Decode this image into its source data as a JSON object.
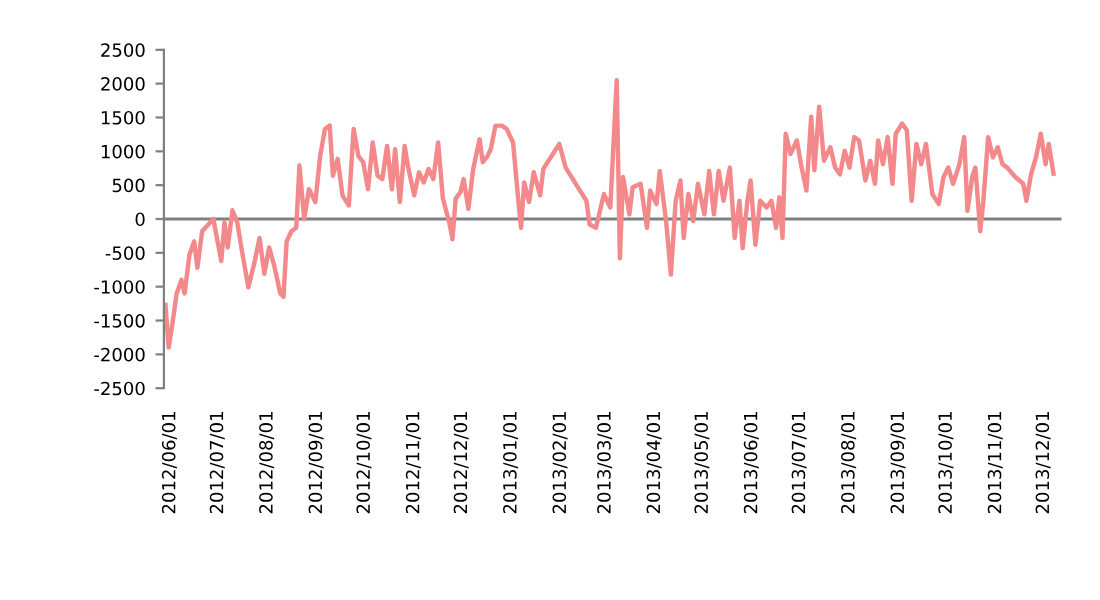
{
  "chart_data": {
    "type": "line",
    "x": [
      "2012-05-29",
      "2012-05-31",
      "2012-06-02",
      "2012-06-05",
      "2012-06-08",
      "2012-06-10",
      "2012-06-13",
      "2012-06-16",
      "2012-06-18",
      "2012-06-21",
      "2012-06-28",
      "2012-07-03",
      "2012-07-05",
      "2012-07-07",
      "2012-07-10",
      "2012-07-13",
      "2012-07-16",
      "2012-07-20",
      "2012-07-24",
      "2012-07-27",
      "2012-07-30",
      "2012-08-02",
      "2012-08-05",
      "2012-08-09",
      "2012-08-11",
      "2012-08-13",
      "2012-08-16",
      "2012-08-19",
      "2012-08-21",
      "2012-08-24",
      "2012-08-27",
      "2012-08-31",
      "2012-09-03",
      "2012-09-06",
      "2012-09-09",
      "2012-09-11",
      "2012-09-14",
      "2012-09-17",
      "2012-09-21",
      "2012-09-24",
      "2012-09-27",
      "2012-09-30",
      "2012-10-03",
      "2012-10-06",
      "2012-10-09",
      "2012-10-12",
      "2012-10-15",
      "2012-10-18",
      "2012-10-20",
      "2012-10-23",
      "2012-10-26",
      "2012-10-28",
      "2012-11-01",
      "2012-11-04",
      "2012-11-07",
      "2012-11-10",
      "2012-11-13",
      "2012-11-16",
      "2012-11-19",
      "2012-11-23",
      "2012-11-25",
      "2012-11-27",
      "2012-11-30",
      "2012-12-02",
      "2012-12-05",
      "2012-12-08",
      "2012-12-12",
      "2012-12-14",
      "2012-12-17",
      "2012-12-19",
      "2012-12-22",
      "2012-12-26",
      "2012-12-29",
      "2013-01-02",
      "2013-01-05",
      "2013-01-07",
      "2013-01-09",
      "2013-01-12",
      "2013-01-15",
      "2013-01-19",
      "2013-01-21",
      "2013-01-31",
      "2013-02-04",
      "2013-02-13",
      "2013-02-17",
      "2013-02-19",
      "2013-02-23",
      "2013-02-28",
      "2013-03-04",
      "2013-03-08",
      "2013-03-10",
      "2013-03-12",
      "2013-03-16",
      "2013-03-18",
      "2013-03-23",
      "2013-03-27",
      "2013-03-29",
      "2013-04-02",
      "2013-04-04",
      "2013-04-08",
      "2013-04-11",
      "2013-04-14",
      "2013-04-17",
      "2013-04-19",
      "2013-04-22",
      "2013-04-25",
      "2013-04-28",
      "2013-05-02",
      "2013-05-05",
      "2013-05-08",
      "2013-05-11",
      "2013-05-14",
      "2013-05-18",
      "2013-05-21",
      "2013-05-24",
      "2013-05-26",
      "2013-05-29",
      "2013-05-31",
      "2013-06-03",
      "2013-06-06",
      "2013-06-10",
      "2013-06-13",
      "2013-06-16",
      "2013-06-18",
      "2013-06-20",
      "2013-06-22",
      "2013-06-25",
      "2013-06-29",
      "2013-07-02",
      "2013-07-05",
      "2013-07-08",
      "2013-07-10",
      "2013-07-13",
      "2013-07-16",
      "2013-07-20",
      "2013-07-23",
      "2013-07-26",
      "2013-07-29",
      "2013-08-01",
      "2013-08-04",
      "2013-08-07",
      "2013-08-11",
      "2013-08-14",
      "2013-08-17",
      "2013-08-19",
      "2013-08-22",
      "2013-08-25",
      "2013-08-28",
      "2013-08-30",
      "2013-09-03",
      "2013-09-06",
      "2013-09-09",
      "2013-09-12",
      "2013-09-15",
      "2013-09-18",
      "2013-09-22",
      "2013-09-26",
      "2013-09-29",
      "2013-10-02",
      "2013-10-05",
      "2013-10-09",
      "2013-10-12",
      "2013-10-14",
      "2013-10-17",
      "2013-10-19",
      "2013-10-22",
      "2013-10-24",
      "2013-10-27",
      "2013-10-30",
      "2013-11-02",
      "2013-11-05",
      "2013-11-08",
      "2013-11-13",
      "2013-11-18",
      "2013-11-20",
      "2013-11-23",
      "2013-11-26",
      "2013-11-29",
      "2013-12-02",
      "2013-12-04",
      "2013-12-07"
    ],
    "series": [
      {
        "color": "#f4898b",
        "values": [
          -1270,
          -1900,
          -1600,
          -1100,
          -900,
          -1100,
          -530,
          -330,
          -720,
          -180,
          0,
          -620,
          -50,
          -420,
          130,
          -50,
          -480,
          -1010,
          -620,
          -280,
          -810,
          -420,
          -670,
          -1100,
          -1150,
          -330,
          -180,
          -130,
          790,
          0,
          440,
          250,
          930,
          1330,
          1380,
          640,
          890,
          350,
          200,
          1330,
          930,
          840,
          440,
          1130,
          640,
          590,
          1080,
          440,
          1030,
          250,
          1080,
          790,
          350,
          690,
          540,
          740,
          590,
          1130,
          300,
          -50,
          -300,
          300,
          400,
          590,
          150,
          740,
          1180,
          840,
          930,
          1030,
          1380,
          1380,
          1330,
          1130,
          350,
          -130,
          540,
          250,
          690,
          350,
          740,
          1110,
          760,
          420,
          270,
          -80,
          -130,
          370,
          170,
          2050,
          -580,
          620,
          70,
          470,
          520,
          -130,
          420,
          220,
          710,
          -30,
          -820,
          270,
          570,
          -280,
          370,
          -30,
          520,
          70,
          710,
          70,
          710,
          270,
          760,
          -280,
          270,
          -430,
          270,
          570,
          -380,
          270,
          170,
          270,
          -130,
          320,
          -280,
          1260,
          960,
          1160,
          760,
          420,
          1510,
          720,
          1660,
          860,
          1060,
          760,
          660,
          1010,
          760,
          1210,
          1160,
          570,
          860,
          520,
          1160,
          810,
          1210,
          520,
          1260,
          1410,
          1310,
          270,
          1110,
          810,
          1110,
          370,
          220,
          620,
          760,
          520,
          810,
          1210,
          120,
          620,
          760,
          -180,
          270,
          1210,
          910,
          1060,
          810,
          760,
          620,
          520,
          270,
          670,
          910,
          1260,
          810,
          1110,
          670
        ]
      }
    ],
    "xlim": [
      "2012-05-28",
      "2013-12-12"
    ],
    "xticks": [
      {
        "value": "2012-06-01",
        "label": "2012/06/01"
      },
      {
        "value": "2012-07-01",
        "label": "2012/07/01"
      },
      {
        "value": "2012-08-01",
        "label": "2012/08/01"
      },
      {
        "value": "2012-09-01",
        "label": "2012/09/01"
      },
      {
        "value": "2012-10-01",
        "label": "2012/10/01"
      },
      {
        "value": "2012-11-01",
        "label": "2012/11/01"
      },
      {
        "value": "2012-12-01",
        "label": "2012/12/01"
      },
      {
        "value": "2013-01-01",
        "label": "2013/01/01"
      },
      {
        "value": "2013-02-01",
        "label": "2013/02/01"
      },
      {
        "value": "2013-03-01",
        "label": "2013/03/01"
      },
      {
        "value": "2013-04-01",
        "label": "2013/04/01"
      },
      {
        "value": "2013-05-01",
        "label": "2013/05/01"
      },
      {
        "value": "2013-06-01",
        "label": "2013/06/01"
      },
      {
        "value": "2013-07-01",
        "label": "2013/07/01"
      },
      {
        "value": "2013-08-01",
        "label": "2013/08/01"
      },
      {
        "value": "2013-09-01",
        "label": "2013/09/01"
      },
      {
        "value": "2013-10-01",
        "label": "2013/10/01"
      },
      {
        "value": "2013-11-01",
        "label": "2013/11/01"
      },
      {
        "value": "2013-12-01",
        "label": "2013/12/01"
      }
    ],
    "ylim": [
      -2500,
      2500
    ],
    "yticks": [
      -2500,
      -2000,
      -1500,
      -1000,
      -500,
      0,
      500,
      1000,
      1500,
      2000,
      2500
    ],
    "ref_lines": [
      {
        "axis": "y",
        "value": 0,
        "color": "#808080"
      }
    ],
    "grid": false,
    "legend": false
  }
}
